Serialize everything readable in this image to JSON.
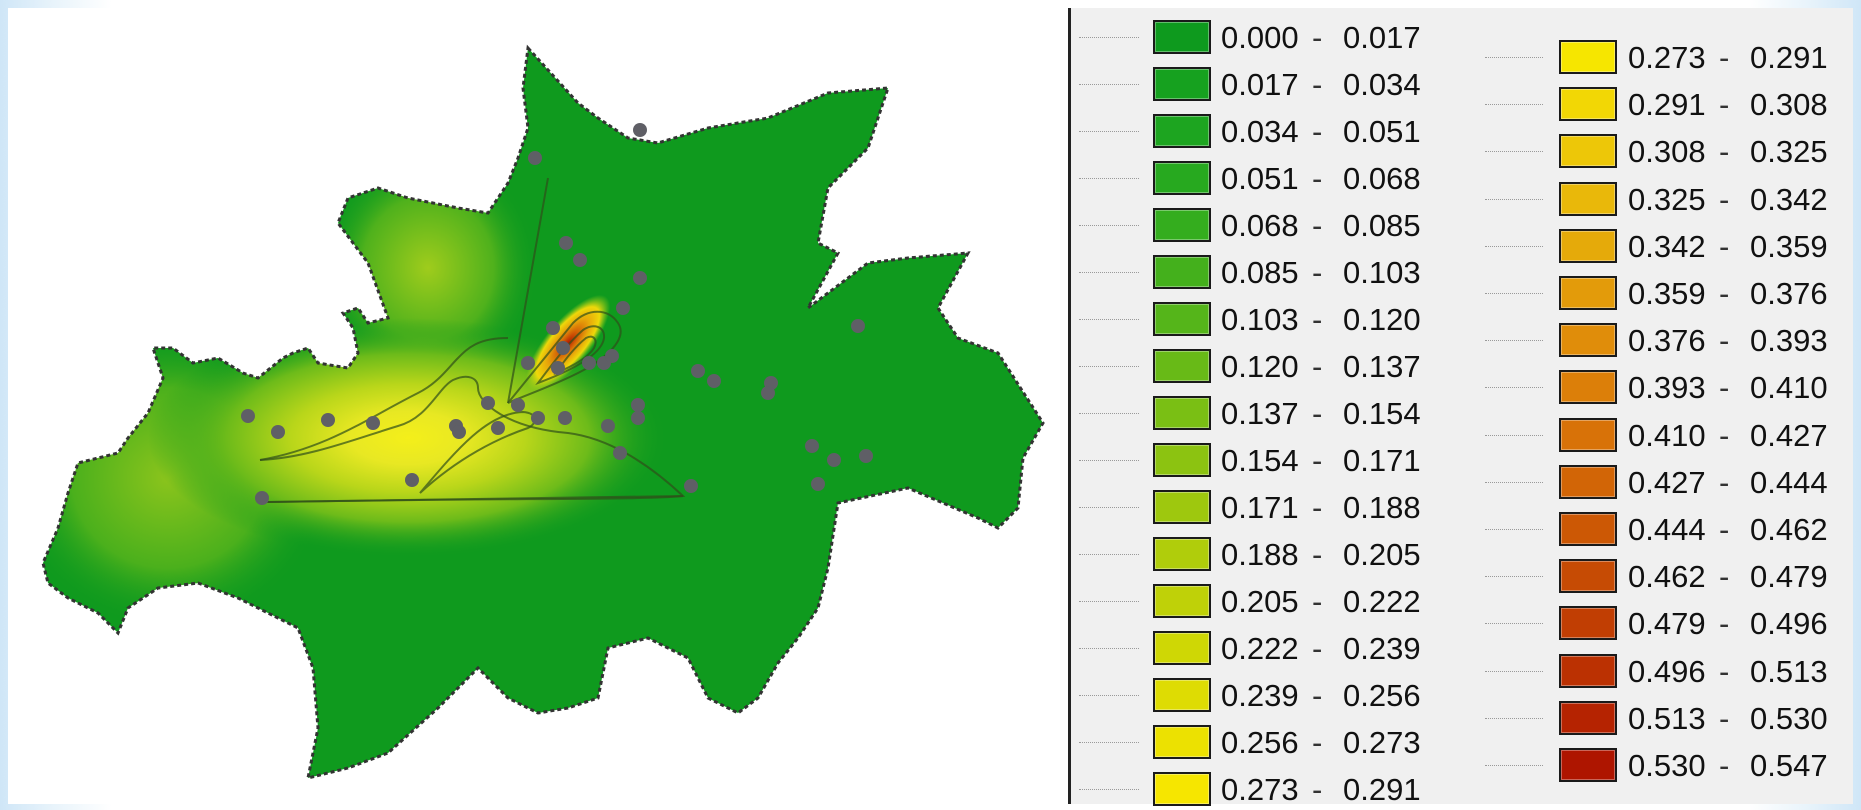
{
  "legend": {
    "columns": [
      {
        "items": [
          {
            "min": "0.000",
            "max": "0.017",
            "color": "#0e9a1e"
          },
          {
            "min": "0.017",
            "max": "0.034",
            "color": "#16a11f"
          },
          {
            "min": "0.034",
            "max": "0.051",
            "color": "#1da520"
          },
          {
            "min": "0.051",
            "max": "0.068",
            "color": "#27a91f"
          },
          {
            "min": "0.068",
            "max": "0.085",
            "color": "#34ad1e"
          },
          {
            "min": "0.085",
            "max": "0.103",
            "color": "#44b01c"
          },
          {
            "min": "0.103",
            "max": "0.120",
            "color": "#55b51a"
          },
          {
            "min": "0.120",
            "max": "0.137",
            "color": "#68ba17"
          },
          {
            "min": "0.137",
            "max": "0.154",
            "color": "#7abf14"
          },
          {
            "min": "0.154",
            "max": "0.171",
            "color": "#8cc311"
          },
          {
            "min": "0.171",
            "max": "0.188",
            "color": "#9ec80e"
          },
          {
            "min": "0.188",
            "max": "0.205",
            "color": "#b0cd0b"
          },
          {
            "min": "0.205",
            "max": "0.222",
            "color": "#bfd108"
          },
          {
            "min": "0.222",
            "max": "0.239",
            "color": "#cfd705"
          },
          {
            "min": "0.239",
            "max": "0.256",
            "color": "#dedc03"
          },
          {
            "min": "0.256",
            "max": "0.273",
            "color": "#ece101"
          },
          {
            "min": "0.273",
            "max": "0.291",
            "color": "#f6e600"
          }
        ]
      },
      {
        "items": [
          {
            "min": "0.273",
            "max": "0.291",
            "color": "#f6e600"
          },
          {
            "min": "0.291",
            "max": "0.308",
            "color": "#f2d705"
          },
          {
            "min": "0.308",
            "max": "0.325",
            "color": "#edc708"
          },
          {
            "min": "0.325",
            "max": "0.342",
            "color": "#e9b80a"
          },
          {
            "min": "0.342",
            "max": "0.359",
            "color": "#e5aa0a"
          },
          {
            "min": "0.359",
            "max": "0.376",
            "color": "#e39b0a"
          },
          {
            "min": "0.376",
            "max": "0.393",
            "color": "#e08d0a"
          },
          {
            "min": "0.393",
            "max": "0.410",
            "color": "#dc7f09"
          },
          {
            "min": "0.410",
            "max": "0.427",
            "color": "#d87208"
          },
          {
            "min": "0.427",
            "max": "0.444",
            "color": "#d26506"
          },
          {
            "min": "0.444",
            "max": "0.462",
            "color": "#cc5805"
          },
          {
            "min": "0.462",
            "max": "0.479",
            "color": "#c64b04"
          },
          {
            "min": "0.479",
            "max": "0.496",
            "color": "#c13e03"
          },
          {
            "min": "0.496",
            "max": "0.513",
            "color": "#bb3102"
          },
          {
            "min": "0.513",
            "max": "0.530",
            "color": "#b52301"
          },
          {
            "min": "0.530",
            "max": "0.547",
            "color": "#ae1500"
          }
        ]
      }
    ]
  },
  "map": {
    "boundary_fill": "#0f9a1e",
    "boundary_stroke": "#333333",
    "point_color": "#5f5f66",
    "sample_point_count": 40
  }
}
